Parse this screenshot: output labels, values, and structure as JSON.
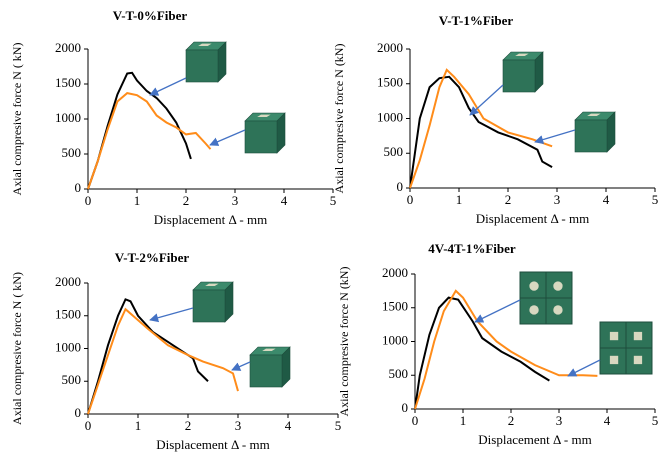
{
  "chart_data": [
    {
      "type": "line",
      "title": "V-T-0%Fiber",
      "xlabel": "Displacement Δ - mm",
      "ylabel": "Axial compresive force N ( kN)",
      "xlim": [
        0,
        5
      ],
      "xticks": [
        0,
        1,
        2,
        3,
        4,
        5
      ],
      "ylim": [
        0,
        2000
      ],
      "yticks": [
        0,
        500,
        1000,
        1500,
        2000
      ],
      "series": [
        {
          "color": "#000000",
          "x": [
            0,
            0.2,
            0.4,
            0.6,
            0.8,
            0.9,
            1.0,
            1.2,
            1.4,
            1.6,
            1.8,
            2.0,
            2.1
          ],
          "values": [
            0,
            400,
            900,
            1350,
            1650,
            1660,
            1550,
            1400,
            1300,
            1150,
            950,
            650,
            430
          ]
        },
        {
          "color": "#ff8c1a",
          "x": [
            0,
            0.2,
            0.4,
            0.6,
            0.8,
            1.0,
            1.2,
            1.4,
            1.6,
            1.8,
            2.0,
            2.2,
            2.4,
            2.5
          ],
          "values": [
            0,
            400,
            850,
            1250,
            1370,
            1340,
            1250,
            1050,
            950,
            880,
            780,
            800,
            650,
            570
          ]
        }
      ]
    },
    {
      "type": "line",
      "title": "V-T-1%Fiber",
      "xlabel": "Displacement Δ - mm",
      "ylabel": "Axial compresive force N (kN)",
      "xlim": [
        0,
        5
      ],
      "xticks": [
        0,
        1,
        2,
        3,
        4,
        5
      ],
      "ylim": [
        0,
        2000
      ],
      "yticks": [
        0,
        500,
        1000,
        1500,
        2000
      ],
      "series": [
        {
          "color": "#000000",
          "x": [
            0,
            0.1,
            0.2,
            0.4,
            0.6,
            0.8,
            1.0,
            1.2,
            1.4,
            1.8,
            2.2,
            2.6,
            2.7,
            2.9
          ],
          "values": [
            0,
            500,
            1000,
            1450,
            1580,
            1600,
            1450,
            1150,
            950,
            800,
            700,
            550,
            380,
            300
          ]
        },
        {
          "color": "#ff8c1a",
          "x": [
            0,
            0.2,
            0.4,
            0.6,
            0.75,
            0.9,
            1.2,
            1.5,
            2.0,
            2.5,
            2.9
          ],
          "values": [
            0,
            400,
            900,
            1450,
            1700,
            1600,
            1350,
            1000,
            800,
            700,
            600
          ]
        }
      ]
    },
    {
      "type": "line",
      "title": "V-T-2%Fiber",
      "xlabel": "Displacement Δ - mm",
      "ylabel": "Axial compresive force N ( kN)",
      "xlim": [
        0,
        5
      ],
      "xticks": [
        0,
        1,
        2,
        3,
        4,
        5
      ],
      "ylim": [
        0,
        2000
      ],
      "yticks": [
        0,
        500,
        1000,
        1500,
        2000
      ],
      "series": [
        {
          "color": "#000000",
          "x": [
            0,
            0.2,
            0.4,
            0.6,
            0.75,
            0.85,
            1.0,
            1.3,
            1.6,
            1.9,
            2.1,
            2.2,
            2.4
          ],
          "values": [
            0,
            500,
            1050,
            1500,
            1750,
            1720,
            1500,
            1250,
            1100,
            950,
            850,
            650,
            500
          ]
        },
        {
          "color": "#ff8c1a",
          "x": [
            0,
            0.2,
            0.4,
            0.6,
            0.75,
            0.9,
            1.2,
            1.6,
            2.0,
            2.3,
            2.7,
            2.9,
            3.0
          ],
          "values": [
            0,
            450,
            900,
            1350,
            1600,
            1500,
            1300,
            1050,
            900,
            800,
            700,
            620,
            350
          ]
        }
      ]
    },
    {
      "type": "line",
      "title": "4V-4T-1%Fiber",
      "xlabel": "Displacement Δ - mm",
      "ylabel": "Axial compresive force N (kN)",
      "xlim": [
        0,
        5
      ],
      "xticks": [
        0,
        1,
        2,
        3,
        4,
        5
      ],
      "ylim": [
        0,
        2000
      ],
      "yticks": [
        0,
        500,
        1000,
        1500,
        2000
      ],
      "series": [
        {
          "color": "#000000",
          "x": [
            0,
            0.1,
            0.3,
            0.5,
            0.7,
            0.9,
            1.2,
            1.4,
            1.8,
            2.2,
            2.5,
            2.8
          ],
          "values": [
            0,
            500,
            1100,
            1500,
            1650,
            1620,
            1300,
            1050,
            850,
            700,
            550,
            420
          ]
        },
        {
          "color": "#ff8c1a",
          "x": [
            0,
            0.2,
            0.4,
            0.6,
            0.85,
            1.0,
            1.3,
            1.7,
            2.0,
            2.5,
            3.0,
            3.5,
            3.8
          ],
          "values": [
            0,
            450,
            1000,
            1450,
            1750,
            1650,
            1300,
            1000,
            850,
            650,
            500,
            500,
            490
          ]
        }
      ]
    }
  ]
}
